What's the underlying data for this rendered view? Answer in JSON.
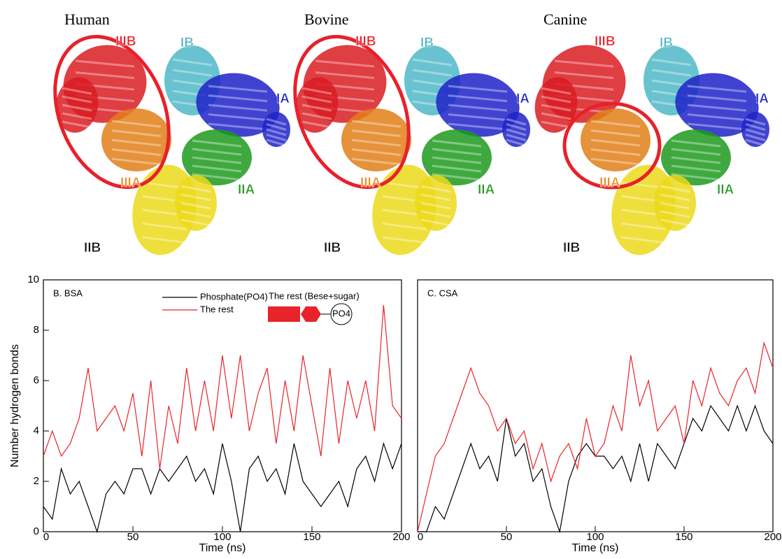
{
  "structures": [
    {
      "species": "Human",
      "labels": [
        "IIIB",
        "IB",
        "IA",
        "IIA",
        "IIIA",
        "IIB"
      ]
    },
    {
      "species": "Bovine",
      "labels": [
        "IIIB",
        "IB",
        "IA",
        "IIA",
        "IIIA",
        "IIB"
      ]
    },
    {
      "species": "Canine",
      "labels": [
        "IIIB",
        "IB",
        "IA",
        "IIA",
        "IIIA",
        "IIB"
      ]
    }
  ],
  "chart_data": [
    {
      "type": "line",
      "title": "B. BSA",
      "xlabel": "Time (ns)",
      "ylabel": "Number hydrogen bonds",
      "annotations": [
        "The rest (Bese+sugar)",
        "PO4"
      ],
      "x": [
        0,
        5,
        10,
        15,
        20,
        25,
        30,
        35,
        40,
        45,
        50,
        55,
        60,
        65,
        70,
        75,
        80,
        85,
        90,
        95,
        100,
        105,
        110,
        115,
        120,
        125,
        130,
        135,
        140,
        145,
        150,
        155,
        160,
        165,
        170,
        175,
        180,
        185,
        190,
        195,
        200
      ],
      "series": [
        {
          "name": "Phosphate(PO4)",
          "color": "#000000",
          "values": [
            1,
            0.5,
            2.5,
            1.5,
            2,
            1,
            0,
            1.5,
            2,
            1.5,
            2.5,
            2.5,
            1.5,
            2.5,
            2,
            2.5,
            3,
            2,
            2.5,
            1.5,
            3.5,
            2,
            0,
            2.5,
            3,
            2,
            2.5,
            1.5,
            3.5,
            2,
            1.5,
            1,
            1.5,
            2,
            1,
            2.5,
            3,
            2,
            3.5,
            2.5,
            3.5
          ]
        },
        {
          "name": "The rest",
          "color": "#e8242a",
          "values": [
            3,
            4,
            3,
            3.5,
            4.5,
            6.5,
            4,
            4.5,
            5,
            4,
            5.5,
            3,
            6,
            2.5,
            5,
            3.5,
            6.5,
            4,
            6,
            4,
            7,
            4.5,
            7,
            4,
            5.5,
            6.5,
            3.5,
            6,
            4,
            7,
            5,
            3,
            6.5,
            3.5,
            6,
            4.5,
            6,
            4,
            9,
            5,
            4.5
          ]
        }
      ],
      "xlim": [
        0,
        200
      ],
      "xticks": [
        0,
        50,
        100,
        150,
        200
      ],
      "ylim": [
        0,
        10
      ],
      "yticks": [
        0,
        2,
        4,
        6,
        8,
        10
      ]
    },
    {
      "type": "line",
      "title": "C. CSA",
      "xlabel": "Time (ns)",
      "x": [
        0,
        5,
        10,
        15,
        20,
        25,
        30,
        35,
        40,
        45,
        50,
        55,
        60,
        65,
        70,
        75,
        80,
        85,
        90,
        95,
        100,
        105,
        110,
        115,
        120,
        125,
        130,
        135,
        140,
        145,
        150,
        155,
        160,
        165,
        170,
        175,
        180,
        185,
        190,
        195,
        200
      ],
      "series": [
        {
          "name": "Phosphate(PO4)",
          "color": "#000000",
          "values": [
            0,
            0,
            1,
            0.5,
            1.5,
            2.5,
            3.5,
            2.5,
            3,
            2,
            4.5,
            3,
            3.5,
            2,
            2.5,
            1,
            0,
            2,
            3,
            3.5,
            3,
            3,
            2.5,
            3,
            2,
            3.5,
            2,
            3.5,
            3,
            2.5,
            3.5,
            4.5,
            4,
            5,
            4.5,
            4,
            5,
            4,
            5,
            4,
            3.5
          ]
        },
        {
          "name": "The rest",
          "color": "#e8242a",
          "values": [
            0,
            1.5,
            3,
            3.5,
            4.5,
            5.5,
            6.5,
            5.5,
            5,
            4,
            4.5,
            3.5,
            4,
            2.5,
            3.5,
            2,
            3,
            3.5,
            2.5,
            4.5,
            3,
            3.5,
            5,
            4,
            7,
            5,
            6,
            4,
            4.5,
            5,
            3.5,
            6,
            5,
            6.5,
            5.5,
            5,
            6,
            6.5,
            5.5,
            7.5,
            6.5
          ]
        }
      ],
      "xlim": [
        0,
        200
      ],
      "xticks": [
        0,
        50,
        100,
        150,
        200
      ],
      "ylim": [
        0,
        10
      ]
    }
  ]
}
